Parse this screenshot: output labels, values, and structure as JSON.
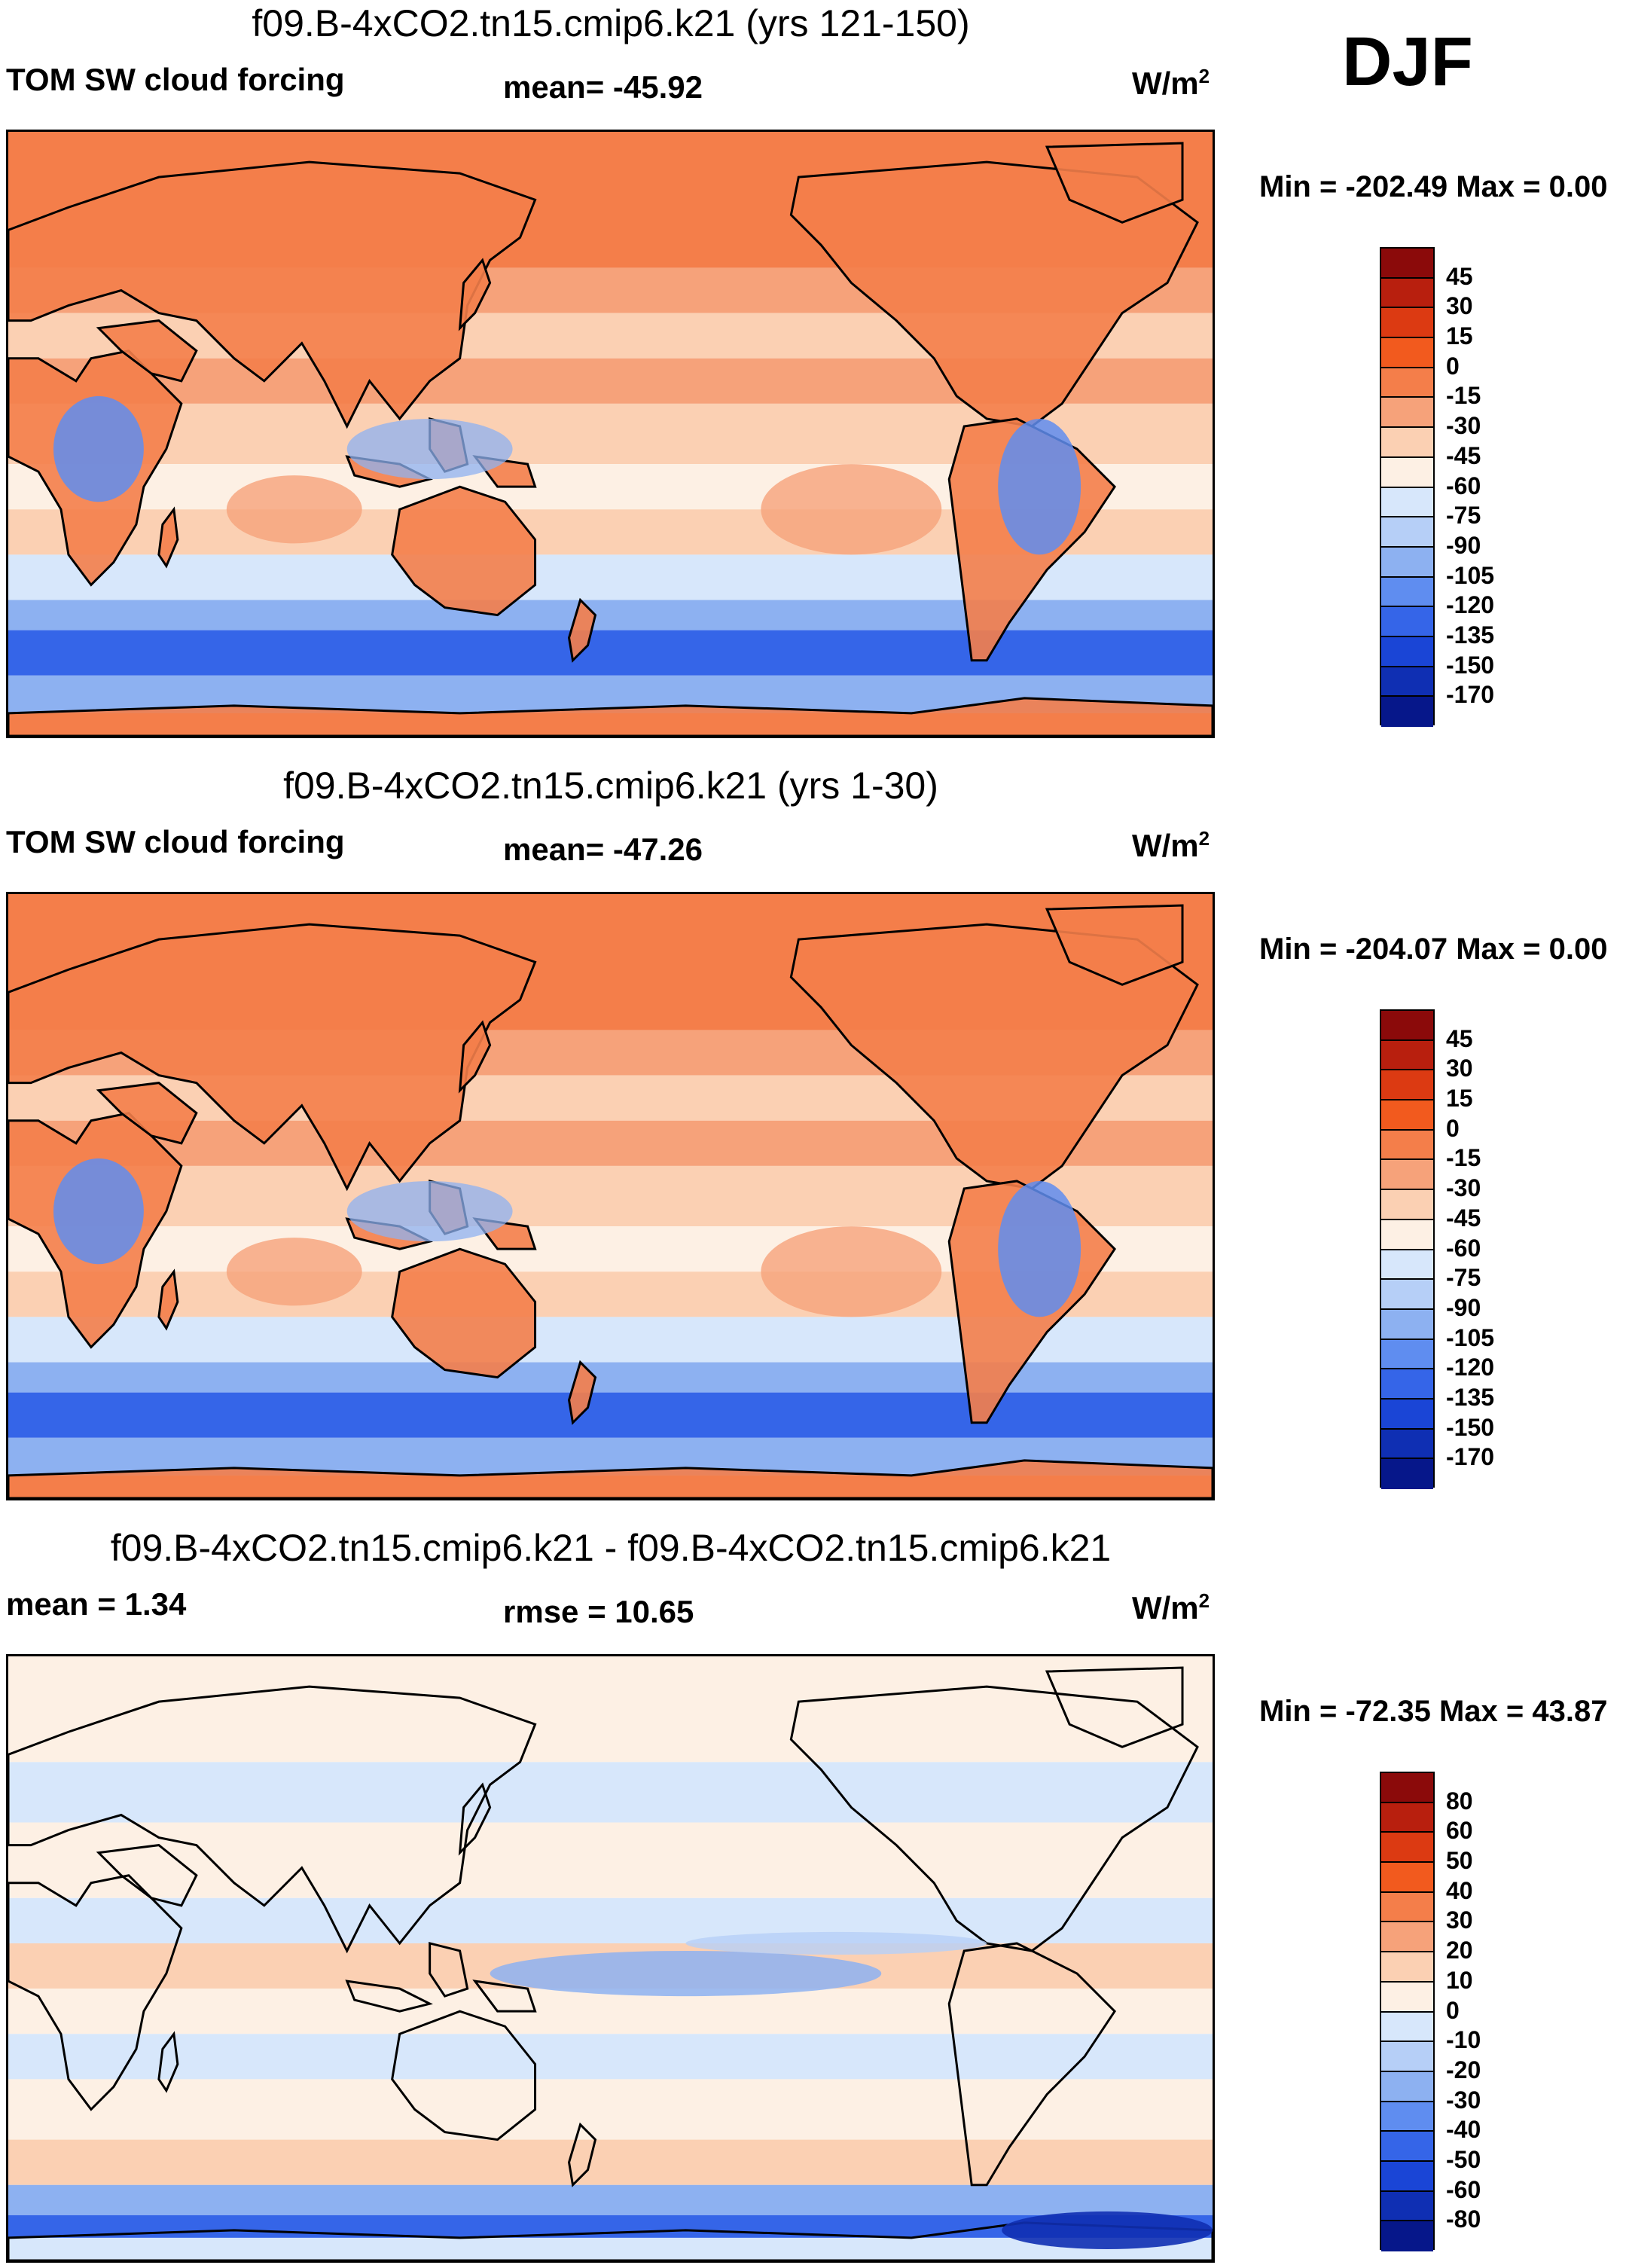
{
  "season": "DJF",
  "panels": [
    {
      "title": "f09.B-4xCO2.tn15.cmip6.k21 (yrs 121-150)",
      "left_label": "TOM SW cloud forcing",
      "center_label": "mean= -45.92",
      "units_base": "W/m",
      "units_sup": "2",
      "minmax": "Min = -202.49 Max =   0.00",
      "colorbar_labels": [
        "45",
        "30",
        "15",
        "0",
        "-15",
        "-30",
        "-45",
        "-60",
        "-75",
        "-90",
        "-105",
        "-120",
        "-135",
        "-150",
        "-170"
      ],
      "colorbar_colors": [
        "#8b0a0a",
        "#b81f0e",
        "#dc3a12",
        "#f25a1e",
        "#f47e4a",
        "#f6a27a",
        "#fbd0b3",
        "#fdf0e4",
        "#d7e7fb",
        "#b6cff7",
        "#8db1f1",
        "#5f8df0",
        "#3565e8",
        "#1a45d6",
        "#0f2fb3",
        "#06178a"
      ],
      "map_style": "base",
      "chart_data": {
        "type": "heatmap",
        "variable": "TOM SW cloud forcing",
        "units": "W/m2",
        "mean": -45.92,
        "min": -202.49,
        "max": 0.0,
        "levels": [
          45,
          30,
          15,
          0,
          -15,
          -30,
          -45,
          -60,
          -75,
          -90,
          -105,
          -120,
          -135,
          -150,
          -170
        ]
      }
    },
    {
      "title": "f09.B-4xCO2.tn15.cmip6.k21 (yrs 1-30)",
      "left_label": "TOM SW cloud forcing",
      "center_label": "mean= -47.26",
      "units_base": "W/m",
      "units_sup": "2",
      "minmax": "Min = -204.07 Max =   0.00",
      "colorbar_labels": [
        "45",
        "30",
        "15",
        "0",
        "-15",
        "-30",
        "-45",
        "-60",
        "-75",
        "-90",
        "-105",
        "-120",
        "-135",
        "-150",
        "-170"
      ],
      "colorbar_colors": [
        "#8b0a0a",
        "#b81f0e",
        "#dc3a12",
        "#f25a1e",
        "#f47e4a",
        "#f6a27a",
        "#fbd0b3",
        "#fdf0e4",
        "#d7e7fb",
        "#b6cff7",
        "#8db1f1",
        "#5f8df0",
        "#3565e8",
        "#1a45d6",
        "#0f2fb3",
        "#06178a"
      ],
      "map_style": "base",
      "chart_data": {
        "type": "heatmap",
        "variable": "TOM SW cloud forcing",
        "units": "W/m2",
        "mean": -47.26,
        "min": -204.07,
        "max": 0.0,
        "levels": [
          45,
          30,
          15,
          0,
          -15,
          -30,
          -45,
          -60,
          -75,
          -90,
          -105,
          -120,
          -135,
          -150,
          -170
        ]
      }
    },
    {
      "title": "f09.B-4xCO2.tn15.cmip6.k21 - f09.B-4xCO2.tn15.cmip6.k21",
      "left_label": "mean =   1.34",
      "center_label": "rmse =  10.65",
      "units_base": "W/m",
      "units_sup": "2",
      "minmax": "Min = -72.35 Max =  43.87",
      "colorbar_labels": [
        "80",
        "60",
        "50",
        "40",
        "30",
        "20",
        "10",
        "0",
        "-10",
        "-20",
        "-30",
        "-40",
        "-50",
        "-60",
        "-80"
      ],
      "colorbar_colors": [
        "#8b0a0a",
        "#b81f0e",
        "#dc3a12",
        "#f25a1e",
        "#f47e4a",
        "#f6a27a",
        "#fbd0b3",
        "#fdf0e4",
        "#d7e7fb",
        "#b6cff7",
        "#8db1f1",
        "#5f8df0",
        "#3565e8",
        "#1a45d6",
        "#0f2fb3",
        "#06178a"
      ],
      "map_style": "diff",
      "chart_data": {
        "type": "heatmap",
        "variable": "TOM SW cloud forcing difference",
        "units": "W/m2",
        "mean": 1.34,
        "rmse": 10.65,
        "min": -72.35,
        "max": 43.87,
        "levels": [
          80,
          60,
          50,
          40,
          30,
          20,
          10,
          0,
          -10,
          -20,
          -30,
          -40,
          -50,
          -60,
          -80
        ]
      }
    }
  ]
}
